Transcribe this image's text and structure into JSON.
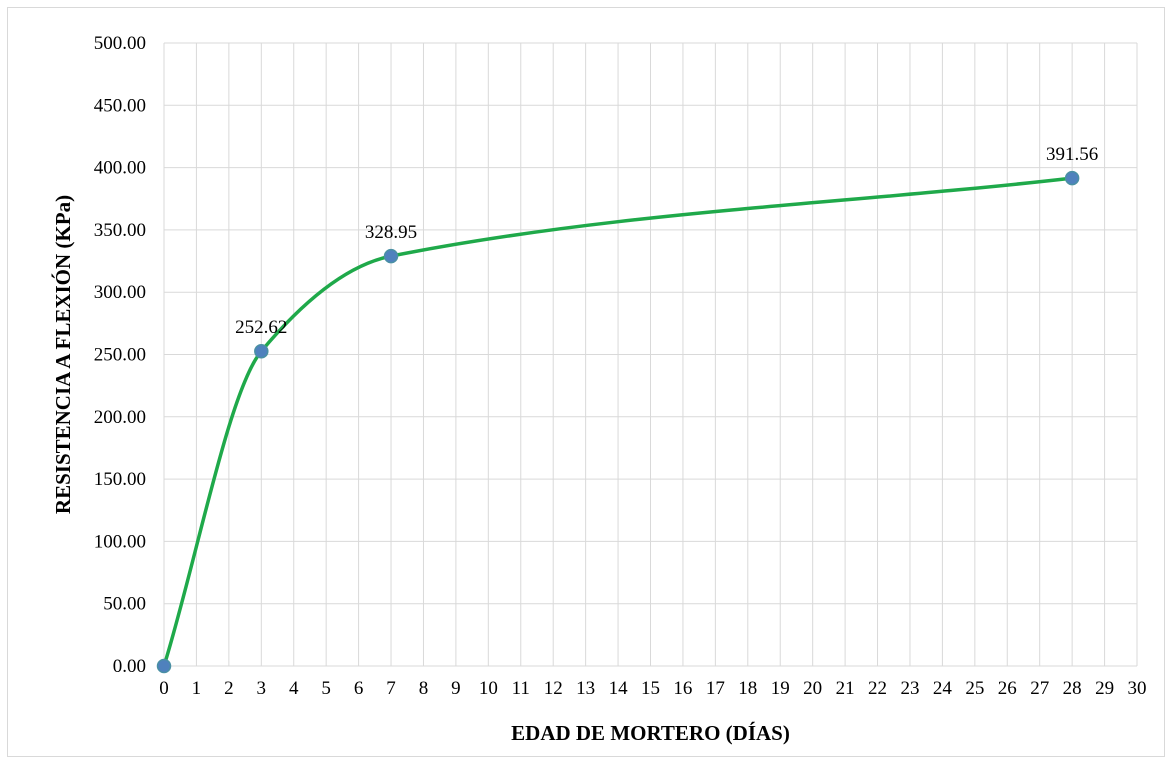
{
  "chart_data": {
    "type": "line",
    "title": "",
    "xlabel": "EDAD DE MORTERO (DÍAS)",
    "ylabel": "RESISTENCIA A  FLEXIÓN (KPa)",
    "xlim": [
      0,
      30
    ],
    "ylim": [
      0,
      500
    ],
    "x_ticks": [
      "0",
      "1",
      "2",
      "3",
      "4",
      "5",
      "6",
      "7",
      "8",
      "9",
      "10",
      "11",
      "12",
      "13",
      "14",
      "15",
      "16",
      "17",
      "18",
      "19",
      "20",
      "21",
      "22",
      "23",
      "24",
      "25",
      "26",
      "27",
      "28",
      "29",
      "30"
    ],
    "y_ticks": [
      "0.00",
      "50.00",
      "100.00",
      "150.00",
      "200.00",
      "250.00",
      "300.00",
      "350.00",
      "400.00",
      "450.00",
      "500.00"
    ],
    "grid": true,
    "smooth": true,
    "series": [
      {
        "x": [
          0,
          3,
          7,
          28
        ],
        "values": [
          0.0,
          252.62,
          328.95,
          391.56
        ],
        "data_labels": [
          "",
          "252.62",
          "328.95",
          "391.56"
        ]
      }
    ],
    "colors": {
      "line": "#1fa94a",
      "marker_fill": "#4f81bd",
      "marker_stroke": "#4a90a4",
      "grid": "#d9d9d9",
      "frame": "#d9d9d9"
    }
  }
}
